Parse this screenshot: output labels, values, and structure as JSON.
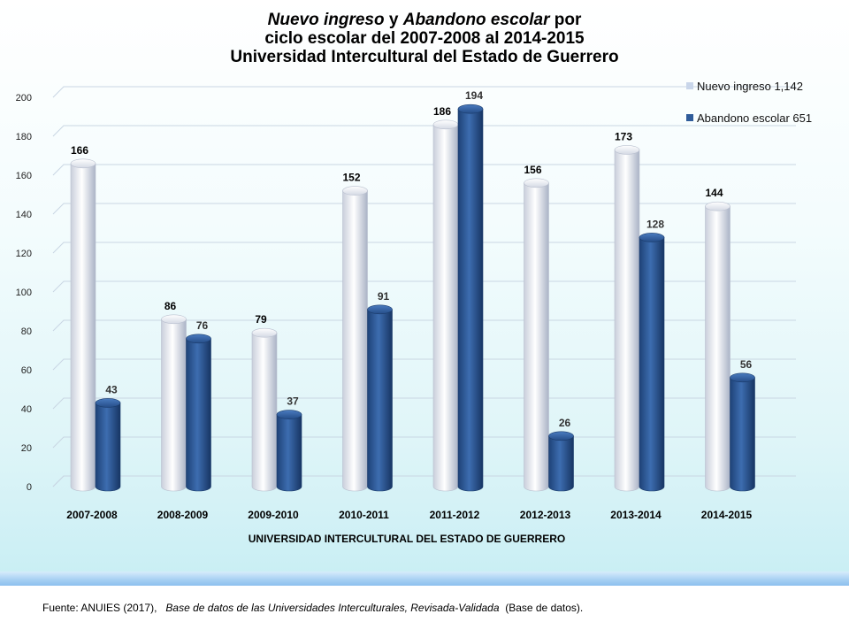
{
  "title": {
    "line1_italic_a": "Nuevo ingreso",
    "line1_mid": " y ",
    "line1_italic_b": "Abandono escolar",
    "line1_tail": " por",
    "line2": "ciclo escolar del 2007-2008 al 2014-2015",
    "line3": "Universidad Intercultural del Estado de Guerrero"
  },
  "source": {
    "prefix": "Fuente: ANUIES (2017),",
    "italic": "Base de datos de las Universidades Interculturales, Revisada-Validada",
    "suffix": "(Base de datos)."
  },
  "colors": {
    "nuevo": "#eef0f6",
    "abandono": "#2f5c9a",
    "grid": "#c9d6e3"
  },
  "chart_data": {
    "type": "bar",
    "categories": [
      "2007-2008",
      "2008-2009",
      "2009-2010",
      "2010-2011",
      "2011-2012",
      "2012-2013",
      "2013-2014",
      "2014-2015"
    ],
    "series": [
      {
        "name": "Nuevo ingreso 1,142",
        "values": [
          166,
          86,
          79,
          152,
          186,
          156,
          173,
          144
        ]
      },
      {
        "name": "Abandono escolar 651",
        "values": [
          43,
          76,
          37,
          91,
          194,
          26,
          128,
          56
        ]
      }
    ],
    "xlabel": "UNIVERSIDAD INTERCULTURAL DEL ESTADO DE GUERRERO",
    "ylabel": "",
    "ylim": [
      0,
      200
    ],
    "yticks": [
      0,
      20,
      40,
      60,
      80,
      100,
      120,
      140,
      160,
      180,
      200
    ],
    "grid": true,
    "legend": "top-right"
  }
}
